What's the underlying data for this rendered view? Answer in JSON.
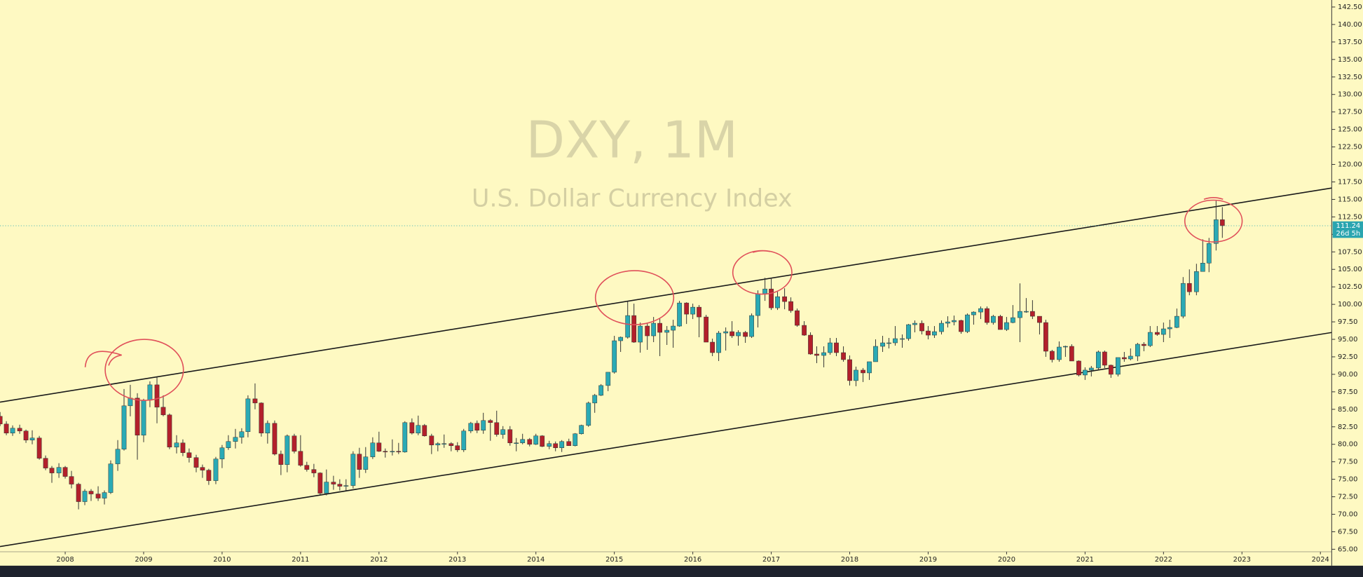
{
  "chart_data": {
    "type": "candlestick",
    "title": "DXY, 1M",
    "subtitle": "U.S. Dollar Currency Index",
    "up_color": "#2aaab5",
    "down_color": "#b3202b",
    "trendline_color": "#1a1a1a",
    "xlim": [
      2007.169,
      2024.144
    ],
    "ylim": [
      62.65,
      143.5
    ],
    "xticks": [
      2008,
      2009,
      2010,
      2011,
      2012,
      2013,
      2014,
      2015,
      2016,
      2017,
      2018,
      2019,
      2020,
      2021,
      2022,
      2023,
      2024
    ],
    "yticks": [
      {
        "value": 65,
        "label": "65.00"
      },
      {
        "value": 67.5,
        "label": "67.50"
      },
      {
        "value": 70,
        "label": "70.00"
      },
      {
        "value": 72.5,
        "label": "72.50"
      },
      {
        "value": 75,
        "label": "75.00"
      },
      {
        "value": 77.5,
        "label": "77.50"
      },
      {
        "value": 80,
        "label": "80.00"
      },
      {
        "value": 82.5,
        "label": "82.50"
      },
      {
        "value": 85,
        "label": "85.00"
      },
      {
        "value": 87.5,
        "label": "87.50"
      },
      {
        "value": 90,
        "label": "90.00"
      },
      {
        "value": 92.5,
        "label": "92.50"
      },
      {
        "value": 95,
        "label": "95.00"
      },
      {
        "value": 97.5,
        "label": "97.50"
      },
      {
        "value": 100,
        "label": "100.00"
      },
      {
        "value": 102.5,
        "label": "102.50"
      },
      {
        "value": 105,
        "label": "105.00"
      },
      {
        "value": 107.5,
        "label": "107.50"
      },
      {
        "value": 110,
        "label": "110.00"
      },
      {
        "value": 112.5,
        "label": "112.50"
      },
      {
        "value": 115,
        "label": "115.00"
      },
      {
        "value": 117.5,
        "label": "117.50"
      },
      {
        "value": 120,
        "label": "120.00"
      },
      {
        "value": 122.5,
        "label": "122.50"
      },
      {
        "value": 125,
        "label": "125.00"
      },
      {
        "value": 127.5,
        "label": "127.50"
      },
      {
        "value": 130,
        "label": "130.00"
      },
      {
        "value": 132.5,
        "label": "132.50"
      },
      {
        "value": 135,
        "label": "135.00"
      },
      {
        "value": 137.5,
        "label": "137.50"
      },
      {
        "value": 140,
        "label": "140.00"
      },
      {
        "value": 142.5,
        "label": "142.50"
      }
    ],
    "last_price": {
      "value": 111.24,
      "label": "111.24"
    },
    "countdown": "26d 5h",
    "trendlines": [
      {
        "x": [
          2007.169,
          2024.144
        ],
        "y": [
          86.03,
          116.63
        ]
      },
      {
        "x": [
          2007.169,
          2024.144
        ],
        "y": [
          65.39,
          95.98
        ]
      }
    ],
    "x": [
      2007.17,
      2007.25,
      2007.33,
      2007.42,
      2007.5,
      2007.58,
      2007.67,
      2007.75,
      2007.83,
      2007.92,
      2008.0,
      2008.08,
      2008.17,
      2008.25,
      2008.33,
      2008.42,
      2008.5,
      2008.58,
      2008.67,
      2008.75,
      2008.83,
      2008.92,
      2009.0,
      2009.08,
      2009.17,
      2009.25,
      2009.33,
      2009.42,
      2009.5,
      2009.58,
      2009.67,
      2009.75,
      2009.83,
      2009.92,
      2010.0,
      2010.08,
      2010.17,
      2010.25,
      2010.33,
      2010.42,
      2010.5,
      2010.58,
      2010.67,
      2010.75,
      2010.83,
      2010.92,
      2011.0,
      2011.08,
      2011.17,
      2011.25,
      2011.33,
      2011.42,
      2011.5,
      2011.58,
      2011.67,
      2011.75,
      2011.83,
      2011.92,
      2012.0,
      2012.08,
      2012.17,
      2012.25,
      2012.33,
      2012.42,
      2012.5,
      2012.58,
      2012.67,
      2012.75,
      2012.83,
      2012.92,
      2013.0,
      2013.08,
      2013.17,
      2013.25,
      2013.33,
      2013.42,
      2013.5,
      2013.58,
      2013.67,
      2013.75,
      2013.83,
      2013.92,
      2014.0,
      2014.08,
      2014.17,
      2014.25,
      2014.33,
      2014.42,
      2014.5,
      2014.58,
      2014.67,
      2014.75,
      2014.83,
      2014.92,
      2015.0,
      2015.08,
      2015.17,
      2015.25,
      2015.33,
      2015.42,
      2015.5,
      2015.58,
      2015.67,
      2015.75,
      2015.83,
      2015.92,
      2016.0,
      2016.08,
      2016.17,
      2016.25,
      2016.33,
      2016.42,
      2016.5,
      2016.58,
      2016.67,
      2016.75,
      2016.83,
      2016.92,
      2017.0,
      2017.08,
      2017.17,
      2017.25,
      2017.33,
      2017.42,
      2017.5,
      2017.58,
      2017.67,
      2017.75,
      2017.83,
      2017.92,
      2018.0,
      2018.08,
      2018.17,
      2018.25,
      2018.33,
      2018.42,
      2018.5,
      2018.58,
      2018.67,
      2018.75,
      2018.83,
      2018.92,
      2019.0,
      2019.08,
      2019.17,
      2019.25,
      2019.33,
      2019.42,
      2019.5,
      2019.58,
      2019.67,
      2019.75,
      2019.83,
      2019.92,
      2020.0,
      2020.08,
      2020.17,
      2020.25,
      2020.33,
      2020.42,
      2020.5,
      2020.58,
      2020.67,
      2020.75,
      2020.83,
      2020.92,
      2021.0,
      2021.08,
      2021.17,
      2021.25,
      2021.33,
      2021.42,
      2021.5,
      2021.58,
      2021.67,
      2021.75,
      2021.83,
      2021.92,
      2022.0,
      2022.08,
      2022.17,
      2022.25,
      2022.33,
      2022.42,
      2022.5,
      2022.58,
      2022.67,
      2022.75
    ],
    "ohlc": [
      [
        84.0,
        84.6,
        82.6,
        82.9
      ],
      [
        82.9,
        83.3,
        81.3,
        81.6
      ],
      [
        81.6,
        82.7,
        81.2,
        82.3
      ],
      [
        82.3,
        82.8,
        81.5,
        81.9
      ],
      [
        81.9,
        82.1,
        80.2,
        80.6
      ],
      [
        80.6,
        82.0,
        80.0,
        80.9
      ],
      [
        80.9,
        81.2,
        77.8,
        78.0
      ],
      [
        78.0,
        78.4,
        76.3,
        76.6
      ],
      [
        76.6,
        76.9,
        74.5,
        75.9
      ],
      [
        75.9,
        77.3,
        75.2,
        76.7
      ],
      [
        76.7,
        76.9,
        75.1,
        75.4
      ],
      [
        75.4,
        76.2,
        73.7,
        74.3
      ],
      [
        74.3,
        74.5,
        70.7,
        71.8
      ],
      [
        71.8,
        73.6,
        71.3,
        73.3
      ],
      [
        73.3,
        73.6,
        71.9,
        72.9
      ],
      [
        72.9,
        74.0,
        71.9,
        72.3
      ],
      [
        72.3,
        73.4,
        71.4,
        73.1
      ],
      [
        73.1,
        77.7,
        72.9,
        77.2
      ],
      [
        77.2,
        80.6,
        76.2,
        79.3
      ],
      [
        79.3,
        87.9,
        79.1,
        85.5
      ],
      [
        85.5,
        88.5,
        84.0,
        86.6
      ],
      [
        86.6,
        87.3,
        77.8,
        81.3
      ],
      [
        81.3,
        86.5,
        80.3,
        86.3
      ],
      [
        86.3,
        89.0,
        85.3,
        88.5
      ],
      [
        88.5,
        89.6,
        83.0,
        85.3
      ],
      [
        85.3,
        87.0,
        84.0,
        84.2
      ],
      [
        84.2,
        84.4,
        79.3,
        79.6
      ],
      [
        79.6,
        81.3,
        78.7,
        80.2
      ],
      [
        80.2,
        80.7,
        78.3,
        78.8
      ],
      [
        78.8,
        79.4,
        77.4,
        78.1
      ],
      [
        78.1,
        78.5,
        76.0,
        76.7
      ],
      [
        76.7,
        77.1,
        75.2,
        76.3
      ],
      [
        76.3,
        76.5,
        74.2,
        74.8
      ],
      [
        74.8,
        78.2,
        74.3,
        77.9
      ],
      [
        77.9,
        79.9,
        76.6,
        79.5
      ],
      [
        79.5,
        81.3,
        79.2,
        80.4
      ],
      [
        80.4,
        82.2,
        79.4,
        81.0
      ],
      [
        81.0,
        82.3,
        80.1,
        81.8
      ],
      [
        81.8,
        87.0,
        81.0,
        86.5
      ],
      [
        86.5,
        88.7,
        85.0,
        85.9
      ],
      [
        85.9,
        86.0,
        81.1,
        81.6
      ],
      [
        81.6,
        83.4,
        80.1,
        83.0
      ],
      [
        83.0,
        83.4,
        78.4,
        78.6
      ],
      [
        78.6,
        79.1,
        75.6,
        77.1
      ],
      [
        77.1,
        81.4,
        76.0,
        81.2
      ],
      [
        81.2,
        81.5,
        78.7,
        79.0
      ],
      [
        79.0,
        81.3,
        76.8,
        77.0
      ],
      [
        77.0,
        77.5,
        76.1,
        76.4
      ],
      [
        76.4,
        77.2,
        75.3,
        75.9
      ],
      [
        75.9,
        76.0,
        72.8,
        73.0
      ],
      [
        73.0,
        76.4,
        72.7,
        74.6
      ],
      [
        74.6,
        75.5,
        73.5,
        74.3
      ],
      [
        74.3,
        75.0,
        73.4,
        74.0
      ],
      [
        74.0,
        75.0,
        73.4,
        74.1
      ],
      [
        74.1,
        79.0,
        73.7,
        78.6
      ],
      [
        78.6,
        79.5,
        75.2,
        76.4
      ],
      [
        76.4,
        79.6,
        75.9,
        78.2
      ],
      [
        78.2,
        81.0,
        77.9,
        80.2
      ],
      [
        80.2,
        81.8,
        78.9,
        79.0
      ],
      [
        79.0,
        79.4,
        78.1,
        78.9
      ],
      [
        78.9,
        80.7,
        78.4,
        79.0
      ],
      [
        79.0,
        80.2,
        78.6,
        78.9
      ],
      [
        78.9,
        83.3,
        78.8,
        83.1
      ],
      [
        83.1,
        83.7,
        81.4,
        81.6
      ],
      [
        81.6,
        84.1,
        81.3,
        82.7
      ],
      [
        82.7,
        82.9,
        81.1,
        81.2
      ],
      [
        81.2,
        81.5,
        78.6,
        79.9
      ],
      [
        79.9,
        80.3,
        79.0,
        80.1
      ],
      [
        80.1,
        81.4,
        79.5,
        80.1
      ],
      [
        80.1,
        80.3,
        79.0,
        79.8
      ],
      [
        79.8,
        80.3,
        78.9,
        79.2
      ],
      [
        79.2,
        82.2,
        78.9,
        81.9
      ],
      [
        81.9,
        83.2,
        81.6,
        83.0
      ],
      [
        83.0,
        83.4,
        81.6,
        82.0
      ],
      [
        82.0,
        84.5,
        81.5,
        83.4
      ],
      [
        83.4,
        83.6,
        80.5,
        83.1
      ],
      [
        83.1,
        84.8,
        81.1,
        81.4
      ],
      [
        81.4,
        82.6,
        80.8,
        82.1
      ],
      [
        82.1,
        82.6,
        79.8,
        80.2
      ],
      [
        80.2,
        80.9,
        79.0,
        80.2
      ],
      [
        80.2,
        81.5,
        80.0,
        80.7
      ],
      [
        80.7,
        80.9,
        79.7,
        80.0
      ],
      [
        80.0,
        81.5,
        79.9,
        81.2
      ],
      [
        81.2,
        81.3,
        79.6,
        79.7
      ],
      [
        79.7,
        80.5,
        79.3,
        80.1
      ],
      [
        80.1,
        80.4,
        79.0,
        79.5
      ],
      [
        79.5,
        80.6,
        78.9,
        80.4
      ],
      [
        80.4,
        80.8,
        79.8,
        79.8
      ],
      [
        79.8,
        81.6,
        79.7,
        81.5
      ],
      [
        81.5,
        82.8,
        81.4,
        82.7
      ],
      [
        82.7,
        86.1,
        82.5,
        85.9
      ],
      [
        85.9,
        87.2,
        84.5,
        87.0
      ],
      [
        87.0,
        88.6,
        86.9,
        88.4
      ],
      [
        88.4,
        90.3,
        87.6,
        90.3
      ],
      [
        90.3,
        95.5,
        90.1,
        94.8
      ],
      [
        94.8,
        95.4,
        93.2,
        95.3
      ],
      [
        95.3,
        100.4,
        95.1,
        98.4
      ],
      [
        98.4,
        100.1,
        94.5,
        94.6
      ],
      [
        94.6,
        97.4,
        93.1,
        96.9
      ],
      [
        96.9,
        97.3,
        93.5,
        95.5
      ],
      [
        95.5,
        98.2,
        94.6,
        97.3
      ],
      [
        97.3,
        98.0,
        92.6,
        96.0
      ],
      [
        96.0,
        96.9,
        94.2,
        96.3
      ],
      [
        96.3,
        97.8,
        93.8,
        96.9
      ],
      [
        96.9,
        100.5,
        96.8,
        100.2
      ],
      [
        100.2,
        100.3,
        97.2,
        98.6
      ],
      [
        98.6,
        100.1,
        97.9,
        99.6
      ],
      [
        99.6,
        99.9,
        95.3,
        98.2
      ],
      [
        98.2,
        98.5,
        94.6,
        94.6
      ],
      [
        94.6,
        95.1,
        92.6,
        93.1
      ],
      [
        93.1,
        96.2,
        91.9,
        95.9
      ],
      [
        95.9,
        96.7,
        93.4,
        96.1
      ],
      [
        96.1,
        97.6,
        95.2,
        95.5
      ],
      [
        95.5,
        96.3,
        94.1,
        96.0
      ],
      [
        96.0,
        96.2,
        94.5,
        95.4
      ],
      [
        95.4,
        98.7,
        95.2,
        98.4
      ],
      [
        98.4,
        102.0,
        96.7,
        101.5
      ],
      [
        101.5,
        103.8,
        100.5,
        102.2
      ],
      [
        102.2,
        103.8,
        99.2,
        99.5
      ],
      [
        99.5,
        101.8,
        99.2,
        101.1
      ],
      [
        101.1,
        102.3,
        99.3,
        100.4
      ],
      [
        100.4,
        101.0,
        98.8,
        99.1
      ],
      [
        99.1,
        99.4,
        96.8,
        97.0
      ],
      [
        97.0,
        97.6,
        95.5,
        95.6
      ],
      [
        95.6,
        96.0,
        92.8,
        92.9
      ],
      [
        92.9,
        94.0,
        91.6,
        92.7
      ],
      [
        92.7,
        94.0,
        91.0,
        93.1
      ],
      [
        93.1,
        95.2,
        92.8,
        94.5
      ],
      [
        94.5,
        95.2,
        92.6,
        93.1
      ],
      [
        93.1,
        94.0,
        91.8,
        92.1
      ],
      [
        92.1,
        92.7,
        88.4,
        89.1
      ],
      [
        89.1,
        91.1,
        88.3,
        90.6
      ],
      [
        90.6,
        90.9,
        88.9,
        90.2
      ],
      [
        90.2,
        91.8,
        89.2,
        91.8
      ],
      [
        91.8,
        95.0,
        91.8,
        94.0
      ],
      [
        94.0,
        95.5,
        93.2,
        94.5
      ],
      [
        94.5,
        95.2,
        93.7,
        94.5
      ],
      [
        94.5,
        96.9,
        94.1,
        95.1
      ],
      [
        95.1,
        95.7,
        93.8,
        95.1
      ],
      [
        95.1,
        97.2,
        94.8,
        97.1
      ],
      [
        97.1,
        97.7,
        96.0,
        97.3
      ],
      [
        97.3,
        97.7,
        95.7,
        96.2
      ],
      [
        96.2,
        96.9,
        95.0,
        95.6
      ],
      [
        95.6,
        96.9,
        95.2,
        96.1
      ],
      [
        96.1,
        97.7,
        95.7,
        97.3
      ],
      [
        97.3,
        98.3,
        96.7,
        97.5
      ],
      [
        97.5,
        98.4,
        97.0,
        97.7
      ],
      [
        97.7,
        97.8,
        95.8,
        96.1
      ],
      [
        96.1,
        98.7,
        95.9,
        98.5
      ],
      [
        98.5,
        99.0,
        97.1,
        98.9
      ],
      [
        98.9,
        99.7,
        97.9,
        99.4
      ],
      [
        99.4,
        99.7,
        97.1,
        97.4
      ],
      [
        97.4,
        98.5,
        97.1,
        98.3
      ],
      [
        98.3,
        98.5,
        96.4,
        96.4
      ],
      [
        96.4,
        98.2,
        96.2,
        97.4
      ],
      [
        97.4,
        99.9,
        97.3,
        98.1
      ],
      [
        98.1,
        103.0,
        94.6,
        99.0
      ],
      [
        99.0,
        100.9,
        98.8,
        99.0
      ],
      [
        99.0,
        100.6,
        97.9,
        98.3
      ],
      [
        98.3,
        98.3,
        95.7,
        97.4
      ],
      [
        97.4,
        97.8,
        92.5,
        93.3
      ],
      [
        93.3,
        93.5,
        91.7,
        92.1
      ],
      [
        92.1,
        94.7,
        91.8,
        93.9
      ],
      [
        93.9,
        94.1,
        92.5,
        94.0
      ],
      [
        94.0,
        94.3,
        91.9,
        91.9
      ],
      [
        91.9,
        92.0,
        89.7,
        89.9
      ],
      [
        89.9,
        91.0,
        89.2,
        90.6
      ],
      [
        90.6,
        91.2,
        89.7,
        90.9
      ],
      [
        90.9,
        93.4,
        90.6,
        93.2
      ],
      [
        93.2,
        93.4,
        90.9,
        91.3
      ],
      [
        91.3,
        91.4,
        89.5,
        90.0
      ],
      [
        90.0,
        92.4,
        89.7,
        92.4
      ],
      [
        92.4,
        93.2,
        91.8,
        92.2
      ],
      [
        92.2,
        93.7,
        92.0,
        92.6
      ],
      [
        92.6,
        94.5,
        91.9,
        94.3
      ],
      [
        94.3,
        94.6,
        93.3,
        94.1
      ],
      [
        94.1,
        96.9,
        93.9,
        96.0
      ],
      [
        96.0,
        96.9,
        95.5,
        95.7
      ],
      [
        95.7,
        97.4,
        94.6,
        96.5
      ],
      [
        96.5,
        97.8,
        95.2,
        96.7
      ],
      [
        96.7,
        99.4,
        96.6,
        98.3
      ],
      [
        98.3,
        103.9,
        98.0,
        103.0
      ],
      [
        103.0,
        105.0,
        101.3,
        101.8
      ],
      [
        101.8,
        105.8,
        101.3,
        104.7
      ],
      [
        104.7,
        109.3,
        104.7,
        105.9
      ],
      [
        105.9,
        109.5,
        104.6,
        108.7
      ],
      [
        108.7,
        114.8,
        107.7,
        112.1
      ],
      [
        112.1,
        113.9,
        109.5,
        111.24
      ]
    ]
  }
}
